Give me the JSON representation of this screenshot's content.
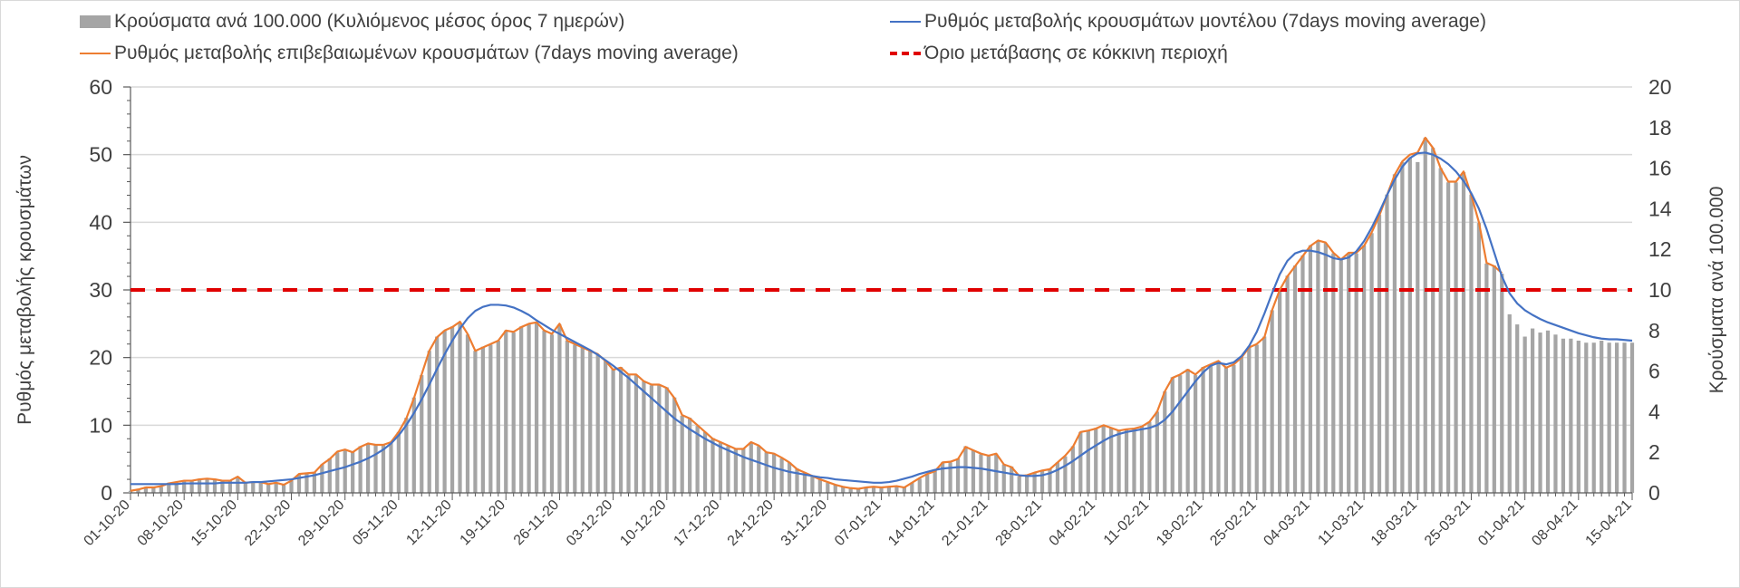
{
  "chart_data": {
    "type": "bar+line",
    "title": "",
    "legend": {
      "placement": "top",
      "bars_label": "Κρούσματα ανά 100.000 (Κυλιόμενος μέσος όρος 7 ημερών)",
      "model_label": "Ρυθμός μεταβολής κρουσμάτων μοντέλου (7days moving average)",
      "confirmed_label": "Ρυθμός μεταβολής επιβεβαιωμένων κρουσμάτων (7days moving average)",
      "threshold_label": "Όριο μετάβασης σε κόκκινη περιοχή"
    },
    "ylabel_left": "Ρυθμός μεταβολής κρουσμάτων",
    "ylabel_right": "Κρούσματα ανά 100.000",
    "ylim_left": [
      0,
      60
    ],
    "ylim_right": [
      0,
      20
    ],
    "yticks_left": [
      "0",
      "10",
      "20",
      "30",
      "40",
      "50",
      "60"
    ],
    "yticks_right": [
      "0",
      "2",
      "4",
      "6",
      "8",
      "10",
      "12",
      "14",
      "16",
      "18",
      "20"
    ],
    "grid": true,
    "start_date": "01-10-20",
    "days": 197,
    "xtick_every_days": 7,
    "xtick_labels": [
      "01-10-20",
      "08-10-20",
      "15-10-20",
      "22-10-20",
      "29-10-20",
      "05-11-20",
      "12-11-20",
      "19-11-20",
      "26-11-20",
      "03-12-20",
      "10-12-20",
      "17-12-20",
      "24-12-20",
      "31-12-20",
      "07-01-21",
      "14-01-21",
      "21-01-21",
      "28-01-21",
      "04-02-21",
      "11-02-21",
      "18-02-21",
      "25-02-21",
      "04-03-21",
      "11-03-21",
      "18-03-21",
      "25-03-21",
      "01-04-21",
      "08-04-21",
      "15-04-21"
    ],
    "threshold_left": 30,
    "colors": {
      "bars": "#a5a5a5",
      "model": "#4472c4",
      "confirmed": "#ed7d31",
      "threshold": "#e00000",
      "grid": "#d9d9d9"
    },
    "series": [
      {
        "name": "bars",
        "axis": "right",
        "values": [
          0.1,
          0.2,
          0.3,
          0.3,
          0.3,
          0.5,
          0.5,
          0.6,
          0.6,
          0.7,
          0.7,
          0.7,
          0.6,
          0.6,
          0.8,
          0.5,
          0.5,
          0.5,
          0.4,
          0.5,
          0.4,
          0.6,
          0.9,
          1.0,
          1.0,
          1.4,
          1.7,
          2.0,
          2.1,
          2.0,
          2.3,
          2.4,
          2.4,
          2.4,
          2.5,
          3.0,
          3.7,
          4.7,
          5.8,
          7.0,
          7.7,
          8.0,
          8.2,
          8.4,
          7.8,
          7.0,
          7.2,
          7.3,
          7.5,
          8.0,
          7.9,
          8.2,
          8.3,
          8.4,
          8.0,
          7.8,
          8.3,
          7.5,
          7.3,
          7.2,
          7.0,
          6.8,
          6.5,
          6.1,
          6.2,
          5.8,
          5.8,
          5.5,
          5.3,
          5.3,
          5.2,
          4.7,
          3.8,
          3.7,
          3.3,
          3.0,
          2.7,
          2.5,
          2.3,
          2.2,
          2.2,
          2.5,
          2.3,
          2.0,
          1.9,
          1.7,
          1.5,
          1.2,
          1.0,
          0.8,
          0.7,
          0.5,
          0.4,
          0.3,
          0.2,
          0.2,
          0.3,
          0.3,
          0.3,
          0.3,
          0.3,
          0.3,
          0.5,
          0.7,
          0.9,
          1.1,
          1.5,
          1.5,
          1.7,
          2.3,
          2.1,
          1.9,
          1.8,
          1.9,
          1.4,
          1.3,
          0.8,
          0.9,
          1.0,
          1.1,
          1.2,
          1.5,
          1.8,
          2.3,
          3.0,
          3.1,
          3.2,
          3.3,
          3.2,
          3.1,
          3.1,
          3.2,
          3.3,
          3.5,
          4.0,
          5.0,
          5.7,
          5.8,
          6.1,
          5.8,
          6.2,
          6.3,
          6.5,
          6.2,
          6.3,
          6.7,
          7.2,
          7.3,
          7.7,
          9.0,
          10.0,
          10.7,
          11.2,
          11.7,
          12.2,
          12.4,
          12.3,
          11.8,
          11.5,
          11.8,
          11.8,
          12.2,
          12.8,
          13.7,
          14.7,
          15.7,
          16.3,
          16.5,
          16.3,
          17.5,
          17.0,
          16.0,
          15.3,
          15.3,
          15.8,
          14.7,
          13.3,
          11.3,
          11.2,
          10.8,
          8.8,
          8.3,
          7.7,
          8.1,
          7.9,
          8.0,
          7.8,
          7.6,
          7.6,
          7.5,
          7.4,
          7.4,
          7.5,
          7.4,
          7.4,
          7.4,
          7.4
        ]
      },
      {
        "name": "model",
        "axis": "left",
        "values": [
          1.3,
          1.3,
          1.3,
          1.3,
          1.3,
          1.3,
          1.3,
          1.4,
          1.4,
          1.4,
          1.4,
          1.4,
          1.5,
          1.5,
          1.5,
          1.5,
          1.6,
          1.6,
          1.7,
          1.8,
          1.9,
          2.0,
          2.2,
          2.4,
          2.6,
          2.9,
          3.2,
          3.5,
          3.8,
          4.2,
          4.6,
          5.1,
          5.7,
          6.4,
          7.3,
          8.5,
          10,
          11.8,
          13.8,
          16,
          18.3,
          20.5,
          22.5,
          24.3,
          25.8,
          26.9,
          27.5,
          27.8,
          27.8,
          27.7,
          27.4,
          26.9,
          26.3,
          25.5,
          24.8,
          24.1,
          23.5,
          22.9,
          22.3,
          21.7,
          21.1,
          20.4,
          19.6,
          18.8,
          17.9,
          17.0,
          16.0,
          15.0,
          14.0,
          13.0,
          12.0,
          11.0,
          10.2,
          9.4,
          8.7,
          8.0,
          7.4,
          6.8,
          6.3,
          5.8,
          5.3,
          4.9,
          4.5,
          4.1,
          3.7,
          3.4,
          3.1,
          2.9,
          2.7,
          2.5,
          2.3,
          2.2,
          2.0,
          1.9,
          1.8,
          1.7,
          1.6,
          1.5,
          1.5,
          1.6,
          1.8,
          2.1,
          2.4,
          2.8,
          3.1,
          3.4,
          3.6,
          3.7,
          3.8,
          3.8,
          3.7,
          3.6,
          3.4,
          3.2,
          3.0,
          2.8,
          2.6,
          2.5,
          2.5,
          2.6,
          2.9,
          3.4,
          4.0,
          4.7,
          5.5,
          6.3,
          7.0,
          7.7,
          8.3,
          8.7,
          9.0,
          9.2,
          9.4,
          9.6,
          10.0,
          10.8,
          12.0,
          13.5,
          15.0,
          16.5,
          17.8,
          18.8,
          19.2,
          19.0,
          19.3,
          20.2,
          21.7,
          23.8,
          26.5,
          29.5,
          32.3,
          34.3,
          35.4,
          35.8,
          35.8,
          35.6,
          35.2,
          34.7,
          34.5,
          34.8,
          35.7,
          37.2,
          39.2,
          41.5,
          44.0,
          46.3,
          48.2,
          49.5,
          50.2,
          50.3,
          50.0,
          49.4,
          48.6,
          47.5,
          46.1,
          44.3,
          42.0,
          39.0,
          35.5,
          32.0,
          29.5,
          28.0,
          27.0,
          26.3,
          25.7,
          25.2,
          24.8,
          24.4,
          24.0,
          23.6,
          23.3,
          23.0,
          22.8,
          22.7,
          22.7,
          22.6,
          22.5
        ]
      },
      {
        "name": "confirmed",
        "axis": "left",
        "values": [
          0.3,
          0.5,
          0.8,
          0.8,
          1.0,
          1.4,
          1.6,
          1.8,
          1.8,
          2.0,
          2.1,
          2.0,
          1.8,
          1.8,
          2.4,
          1.5,
          1.6,
          1.6,
          1.3,
          1.5,
          1.2,
          1.8,
          2.8,
          2.9,
          3.0,
          4.2,
          5.0,
          6.1,
          6.4,
          6.0,
          6.8,
          7.3,
          7.1,
          7.1,
          7.5,
          9.0,
          11,
          14,
          17.5,
          21,
          23,
          24,
          24.5,
          25.3,
          23.5,
          21,
          21.5,
          22,
          22.5,
          24,
          23.8,
          24.5,
          25,
          25.2,
          24,
          23.5,
          25,
          22.5,
          22,
          21.5,
          21,
          20.5,
          19.5,
          18.2,
          18.5,
          17.5,
          17.5,
          16.5,
          16,
          16,
          15.5,
          14,
          11.5,
          11,
          10,
          9,
          8,
          7.5,
          7,
          6.5,
          6.5,
          7.5,
          7,
          6,
          5.8,
          5.2,
          4.5,
          3.5,
          3.0,
          2.5,
          2.0,
          1.6,
          1.2,
          0.9,
          0.7,
          0.6,
          0.8,
          0.9,
          0.8,
          0.9,
          1.0,
          0.8,
          1.5,
          2.2,
          2.8,
          3.2,
          4.5,
          4.6,
          5,
          6.8,
          6.3,
          5.8,
          5.5,
          5.8,
          4.2,
          3.8,
          2.5,
          2.6,
          3.0,
          3.3,
          3.5,
          4.5,
          5.5,
          6.8,
          9,
          9.2,
          9.5,
          10,
          9.6,
          9.2,
          9.4,
          9.5,
          9.8,
          10.5,
          12,
          15,
          17,
          17.5,
          18.2,
          17.5,
          18.5,
          19,
          19.5,
          18.5,
          19,
          20,
          21.5,
          22,
          23,
          27,
          30,
          32,
          33.5,
          35,
          36.5,
          37.3,
          37,
          35.5,
          34.5,
          35.5,
          35.5,
          36.5,
          38.5,
          41,
          44,
          47,
          49,
          50,
          50.3,
          52.5,
          51,
          48,
          46,
          46,
          47.5,
          44,
          40,
          34,
          33.5,
          32.5
        ]
      }
    ]
  }
}
